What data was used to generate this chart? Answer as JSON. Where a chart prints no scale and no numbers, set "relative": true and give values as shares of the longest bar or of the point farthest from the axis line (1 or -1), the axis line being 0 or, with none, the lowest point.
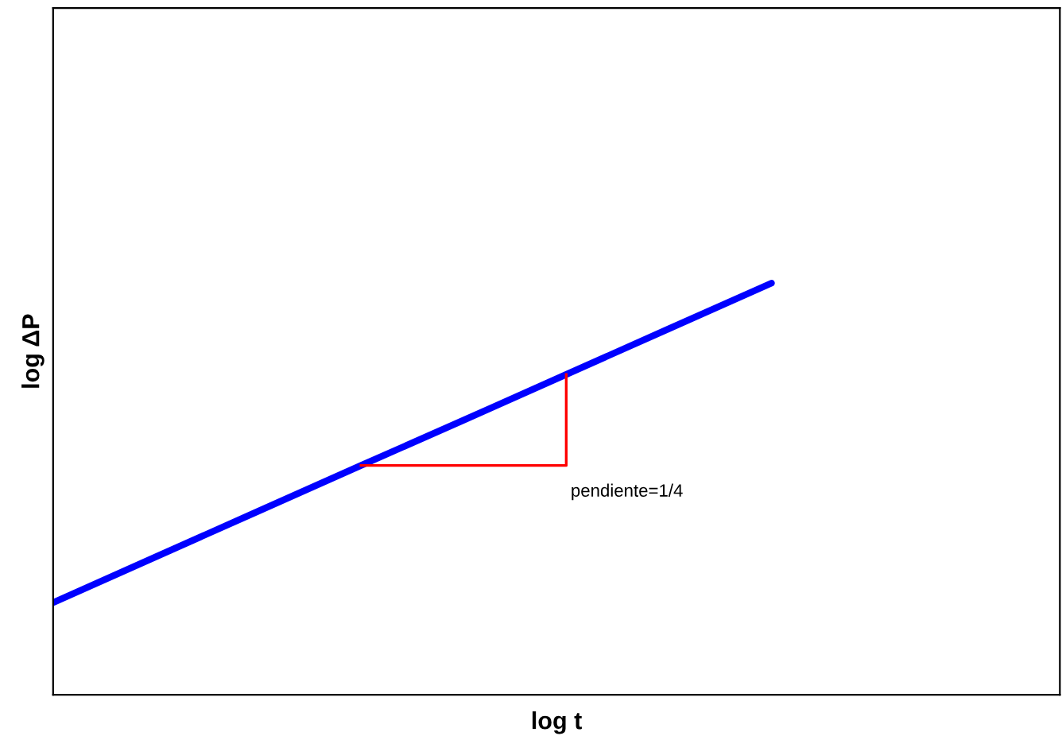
{
  "chart_data": {
    "type": "line",
    "relative": true,
    "xlabel": "log t",
    "ylabel": "log ΔP",
    "categories": [
      null,
      null,
      null,
      null,
      null,
      null,
      null,
      null,
      null,
      null
    ],
    "series": [
      {
        "color": "#0000ff",
        "values": [
          0.224,
          0.335,
          0.446,
          0.557,
          0.667,
          0.778,
          0.889,
          1.0,
          null,
          null
        ]
      }
    ],
    "annotations": [
      "pendiente=1/4"
    ],
    "legend": false,
    "marker": "none",
    "line_style": "solid"
  }
}
